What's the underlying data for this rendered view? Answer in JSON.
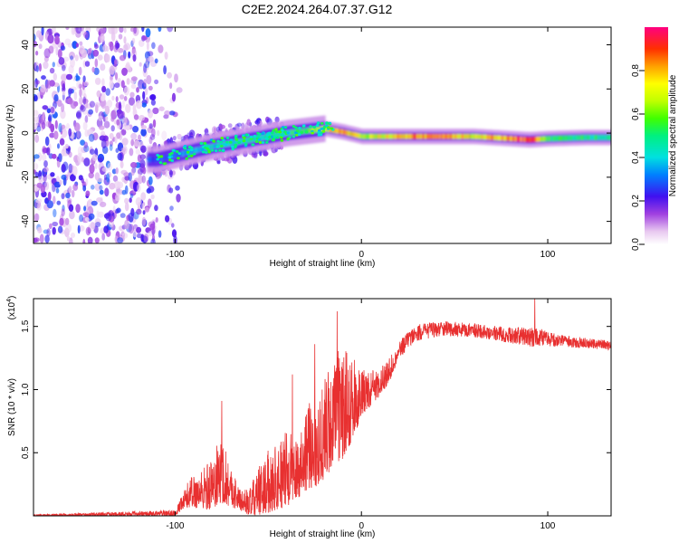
{
  "title": "C2E2.2024.264.07.37.G12",
  "colors": {
    "snr_line": "#e83030",
    "axis": "#000000",
    "background": "#ffffff"
  },
  "chart_data": [
    {
      "type": "heatmap",
      "name": "spectrogram",
      "xlabel": "Height of straight line (km)",
      "ylabel": "Frequency (Hz)",
      "xlim": [
        -176,
        134
      ],
      "ylim": [
        -50,
        48
      ],
      "xticks": [
        -100,
        0,
        100
      ],
      "yticks": [
        -40,
        -20,
        0,
        20,
        40
      ],
      "colorbar": {
        "label": "Normalized spectral amplitude",
        "range": [
          0,
          1
        ],
        "ticks": [
          "0.0",
          "0.2",
          "0.4",
          "0.6",
          "0.8"
        ],
        "tick_values": [
          0.0,
          0.2,
          0.4,
          0.6,
          0.8
        ]
      },
      "ridge": {
        "description_x": [
          -110,
          -100,
          -80,
          -60,
          -40,
          -30,
          -20,
          -10,
          0,
          20,
          40,
          60,
          80,
          90,
          100,
          120,
          134
        ],
        "frequency": [
          -12,
          -10,
          -6,
          -3,
          0,
          1,
          2,
          0.5,
          -1.5,
          -1.5,
          -1.5,
          -1.5,
          -2.5,
          -3,
          -2.5,
          -2,
          -2
        ],
        "amplitude": [
          0.3,
          0.35,
          0.45,
          0.5,
          0.55,
          0.6,
          0.75,
          0.95,
          0.7,
          0.85,
          0.95,
          0.8,
          0.9,
          1.0,
          0.6,
          0.55,
          0.5
        ]
      },
      "noise_region_x": [
        -176,
        -105
      ]
    },
    {
      "type": "line",
      "name": "snr",
      "xlabel": "Height of straight line (km)",
      "ylabel": "SNR (10 * v/v)",
      "exponent_label": "(x10",
      "exponent_power": "4",
      "exponent_close": ")",
      "xlim": [
        -176,
        134
      ],
      "ylim": [
        0,
        1.72
      ],
      "xticks": [
        -100,
        0,
        100
      ],
      "yticks": [
        0.5,
        1.0,
        1.5
      ],
      "ytick_labels": [
        "0.5",
        "1.0",
        "1.5"
      ],
      "envelope_x": [
        -176,
        -100,
        -96,
        -92,
        -85,
        -80,
        -75,
        -70,
        -65,
        -60,
        -55,
        -50,
        -45,
        -40,
        -35,
        -30,
        -25,
        -20,
        -15,
        -10,
        -5,
        0,
        5,
        10,
        15,
        20,
        25,
        30,
        40,
        50,
        60,
        70,
        80,
        90,
        95,
        100,
        110,
        120,
        134
      ],
      "envelope_base": [
        0.0,
        0.02,
        0.1,
        0.18,
        0.2,
        0.25,
        0.35,
        0.22,
        0.12,
        0.1,
        0.18,
        0.25,
        0.3,
        0.35,
        0.35,
        0.5,
        0.55,
        0.65,
        0.8,
        0.85,
        0.9,
        0.95,
        1.0,
        1.05,
        1.15,
        1.3,
        1.4,
        1.45,
        1.48,
        1.48,
        1.47,
        1.45,
        1.43,
        1.42,
        1.42,
        1.4,
        1.38,
        1.37,
        1.35
      ],
      "envelope_amp": [
        0.015,
        0.03,
        0.12,
        0.22,
        0.3,
        0.4,
        0.5,
        0.3,
        0.15,
        0.2,
        0.35,
        0.45,
        0.5,
        0.55,
        0.45,
        0.6,
        0.65,
        0.75,
        0.8,
        0.8,
        0.6,
        0.35,
        0.25,
        0.2,
        0.18,
        0.1,
        0.08,
        0.08,
        0.08,
        0.07,
        0.07,
        0.07,
        0.08,
        0.1,
        0.1,
        0.07,
        0.06,
        0.05,
        0.05
      ],
      "spikes": [
        {
          "x": -75,
          "value": 0.91
        },
        {
          "x": -37,
          "value": 1.12
        },
        {
          "x": -25,
          "value": 1.36
        },
        {
          "x": -13,
          "value": 1.62
        },
        {
          "x": 93,
          "value": 1.72
        }
      ]
    }
  ]
}
